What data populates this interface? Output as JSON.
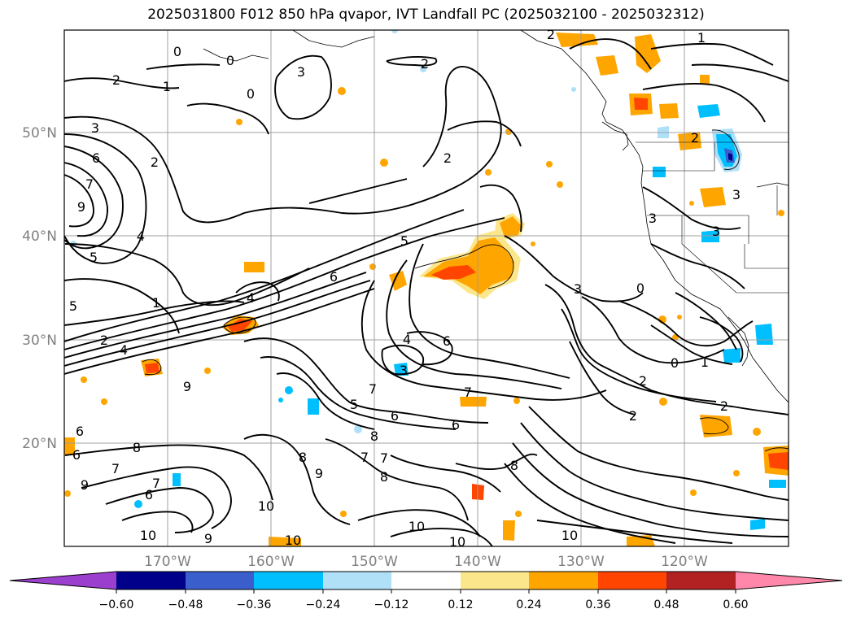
{
  "title": "2025031800 F012 850 hPa qvapor, IVT Landfall PC (2025032100 - 2025032312)",
  "lat_labels": [
    "50°N",
    "40°N",
    "30°N",
    "20°N"
  ],
  "lon_labels": [
    "170°W",
    "160°W",
    "150°W",
    "140°W",
    "130°W",
    "120°W"
  ],
  "colorbar": {
    "ticks": [
      "−0.60",
      "−0.48",
      "−0.36",
      "−0.24",
      "−0.12",
      "0.12",
      "0.24",
      "0.36",
      "0.48",
      "0.60"
    ],
    "colors": [
      "#9b3fcf",
      "#00008b",
      "#3a5fcd",
      "#00bfff",
      "#b0e0f8",
      "#ffffff",
      "#fce68c",
      "#ffa500",
      "#ff4500",
      "#b22222",
      "#ff88aa"
    ]
  },
  "contour_labels": [
    "2",
    "1",
    "0",
    "0",
    "3",
    "0",
    "3",
    "6",
    "2",
    "9",
    "7",
    "4",
    "5",
    "6",
    "2",
    "5",
    "4",
    "5",
    "6",
    "4",
    "3",
    "1",
    "2",
    "4",
    "6",
    "3",
    "7",
    "2",
    "9",
    "5",
    "6",
    "7",
    "6",
    "8",
    "6",
    "8",
    "7",
    "9",
    "6",
    "7",
    "8",
    "9",
    "7",
    "8",
    "7",
    "10",
    "10",
    "10",
    "9",
    "10",
    "10",
    "8",
    "10",
    "2",
    "2",
    "3",
    "3",
    "3",
    "0",
    "0",
    "1",
    "2",
    "2",
    "1",
    "2"
  ],
  "map": {
    "lat_range": [
      10,
      60
    ],
    "lon_range": [
      -180,
      -110
    ],
    "features": [
      "coastline",
      "state-borders",
      "gridlines"
    ]
  }
}
